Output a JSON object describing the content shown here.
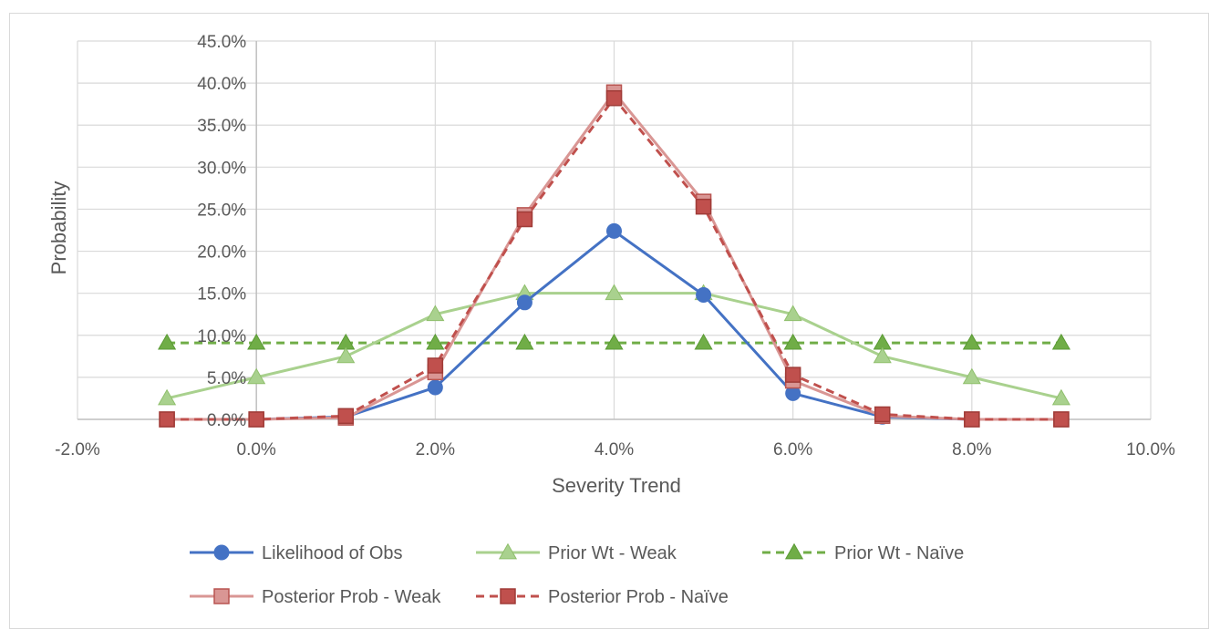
{
  "chart_data": {
    "type": "line",
    "title": "",
    "xlabel": "Severity Trend",
    "ylabel": "Probability",
    "xlim": [
      -2.0,
      10.0
    ],
    "ylim": [
      0.0,
      45.0
    ],
    "x_tick_labels": [
      "-2.0%",
      "0.0%",
      "2.0%",
      "4.0%",
      "6.0%",
      "8.0%",
      "10.0%"
    ],
    "y_tick_labels": [
      "0.0%",
      "5.0%",
      "10.0%",
      "15.0%",
      "20.0%",
      "25.0%",
      "30.0%",
      "35.0%",
      "40.0%",
      "45.0%"
    ],
    "x_ticks": [
      -2,
      0,
      2,
      4,
      6,
      8,
      10
    ],
    "y_ticks": [
      0,
      5,
      10,
      15,
      20,
      25,
      30,
      35,
      40,
      45
    ],
    "grid": "vertical and horizontal major gridlines",
    "legend_position": "bottom",
    "x": [
      -1,
      0,
      1,
      2,
      3,
      4,
      5,
      6,
      7,
      8,
      9
    ],
    "series": [
      {
        "name": "Likelihood of Obs",
        "values": [
          0.0,
          0.0,
          0.3,
          3.8,
          13.9,
          22.4,
          14.8,
          3.1,
          0.3,
          0.0,
          0.0
        ],
        "color": "#4472c4",
        "marker": "circle",
        "dash": "solid"
      },
      {
        "name": "Prior Wt - Weak",
        "values": [
          2.5,
          5.0,
          7.5,
          12.5,
          15.0,
          15.0,
          15.0,
          12.5,
          7.5,
          5.0,
          2.5
        ],
        "color": "#a9d18e",
        "marker": "triangle",
        "dash": "solid"
      },
      {
        "name": "Prior Wt - Naïve",
        "values": [
          9.1,
          9.1,
          9.1,
          9.1,
          9.1,
          9.1,
          9.1,
          9.1,
          9.1,
          9.1,
          9.1
        ],
        "color": "#70ad47",
        "marker": "triangle",
        "dash": "dashed"
      },
      {
        "name": "Posterior Prob - Weak",
        "values": [
          0.0,
          0.0,
          0.2,
          5.6,
          24.3,
          38.9,
          25.9,
          4.6,
          0.4,
          0.0,
          0.0
        ],
        "color": "#d99694",
        "marker": "square",
        "dash": "solid"
      },
      {
        "name": "Posterior Prob - Naïve",
        "values": [
          0.0,
          0.0,
          0.4,
          6.4,
          23.8,
          38.2,
          25.3,
          5.3,
          0.6,
          0.0,
          0.0
        ],
        "color": "#c0504d",
        "marker": "square",
        "dash": "dashed"
      }
    ]
  }
}
